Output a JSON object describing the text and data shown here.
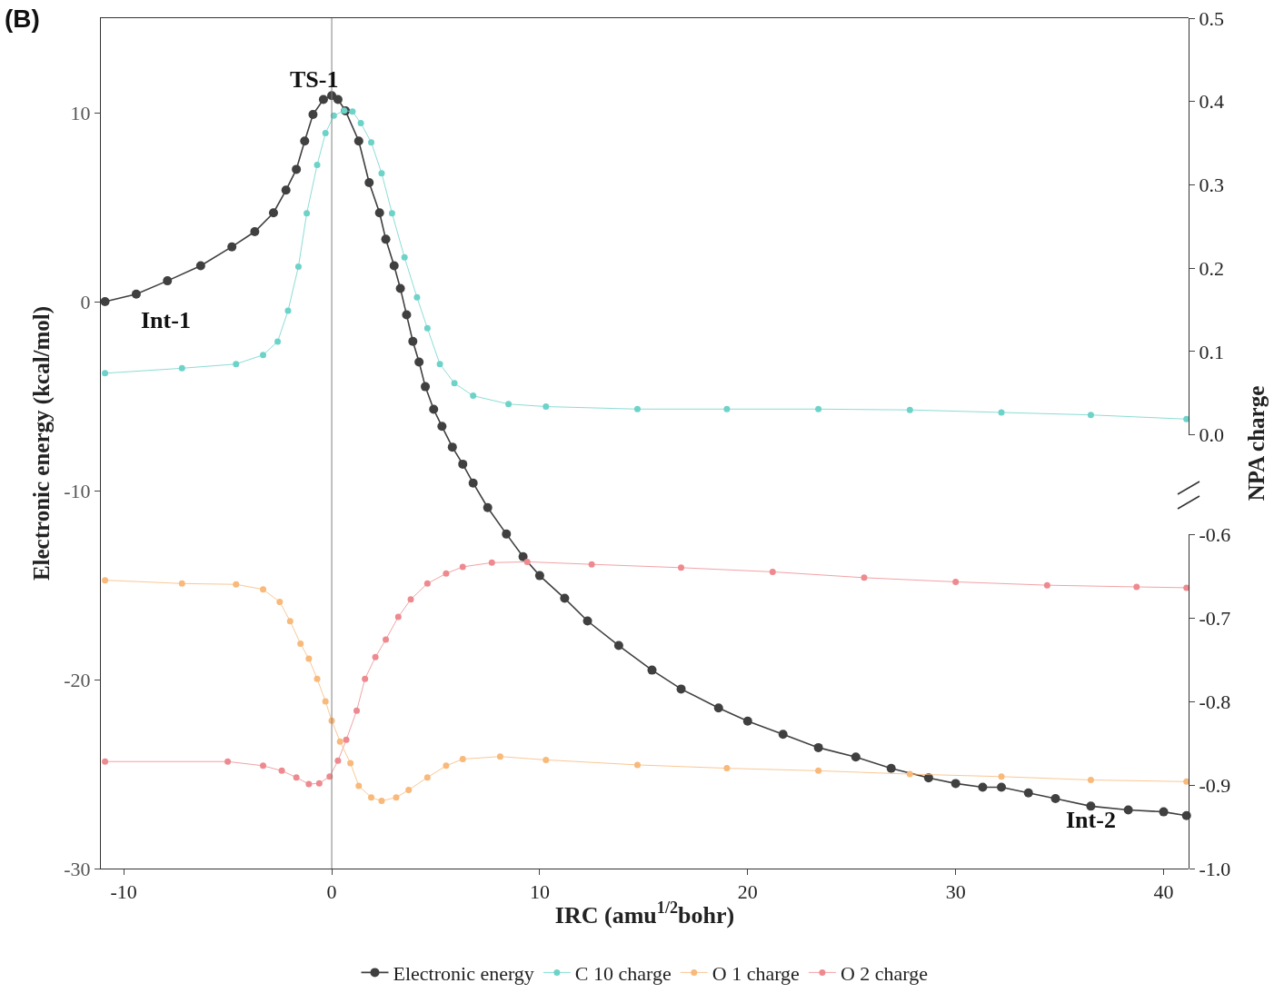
{
  "chart_data": {
    "type": "line",
    "xlabel": "IRC (amu$^{1/2}$bohr)",
    "ylabel": "Electronic energy (kcal/mol)",
    "y2label": "NPA charge",
    "annotations": [
      "(B)",
      "TS-1",
      "Int-1",
      "Int-2"
    ],
    "xlim": [
      -11.1,
      41.2
    ],
    "xticks": [
      -10,
      0,
      10,
      20,
      30,
      40
    ],
    "ylim": [
      -30,
      15
    ],
    "yticks": [
      -30,
      -20,
      -10,
      0,
      10
    ],
    "y2lim": [
      0,
      0.5
    ],
    "y2ticks": [
      {
        "value": 0,
        "label": "0.0"
      },
      0.1,
      0.2,
      0.3,
      0.4,
      0.5
    ],
    "y3lim": [
      -1.0,
      -0.6
    ],
    "y3ticks": [
      {
        "value": -1.0,
        "label": "-1.0"
      },
      -0.9,
      -0.8,
      -0.7,
      -0.6
    ],
    "ref_lines": [
      {
        "axis": "x",
        "value": 0,
        "color": "#808080"
      }
    ],
    "grid": false,
    "legend": "bottom",
    "marker": "circle",
    "line_style": "solid",
    "series": [
      {
        "name": "Electronic energy",
        "color": "#404040",
        "x": [
          -10.9,
          -9.4,
          -7.9,
          -6.3,
          -4.8,
          -3.7,
          -2.8,
          -2.2,
          -1.7,
          -1.3,
          -0.9,
          -0.4,
          0,
          0.3,
          0.66,
          1.3,
          1.8,
          2.3,
          2.6,
          3.0,
          3.3,
          3.6,
          3.9,
          4.2,
          4.5,
          4.9,
          5.3,
          5.8,
          6.3,
          6.8,
          7.5,
          8.4,
          9.2,
          10,
          11.2,
          12.3,
          13.8,
          15.4,
          16.8,
          18.6,
          20,
          21.7,
          23.4,
          25.2,
          26.9,
          28.7,
          30,
          31.3,
          32.2,
          33.5,
          34.8,
          36.5,
          38.3,
          40,
          41.1
        ],
        "values": [
          0.0,
          0.4,
          1.1,
          1.9,
          2.9,
          3.7,
          4.7,
          5.9,
          7.0,
          8.5,
          9.9,
          10.7,
          10.9,
          10.7,
          10.1,
          8.5,
          6.3,
          4.7,
          3.3,
          1.9,
          0.7,
          -0.7,
          -2.1,
          -3.2,
          -4.5,
          -5.7,
          -6.6,
          -7.7,
          -8.6,
          -9.6,
          -10.9,
          -12.3,
          -13.5,
          -14.5,
          -15.7,
          -16.9,
          -18.2,
          -19.5,
          -20.5,
          -21.5,
          -22.2,
          -22.9,
          -23.6,
          -24.1,
          -24.7,
          -25.2,
          -25.5,
          -25.7,
          -25.7,
          -26.0,
          -26.3,
          -26.7,
          -26.9,
          -27.0,
          -27.2
        ]
      },
      {
        "name": "C 10 charge",
        "color": "#6dd3c9",
        "axis": "y2",
        "x": [
          -10.9,
          -7.2,
          -4.6,
          -3.3,
          -2.6,
          -2.1,
          -1.6,
          -1.2,
          -0.7,
          -0.3,
          0.1,
          0.6,
          1.0,
          1.4,
          1.9,
          2.4,
          2.9,
          3.5,
          4.1,
          4.6,
          5.2,
          5.9,
          6.8,
          8.5,
          10.3,
          14.7,
          19,
          23.4,
          27.8,
          32.2,
          36.5,
          41.1
        ],
        "values": [
          0.074,
          0.08,
          0.085,
          0.096,
          0.112,
          0.149,
          0.202,
          0.266,
          0.324,
          0.362,
          0.383,
          0.389,
          0.388,
          0.374,
          0.351,
          0.314,
          0.266,
          0.213,
          0.165,
          0.128,
          0.085,
          0.062,
          0.047,
          0.037,
          0.034,
          0.031,
          0.031,
          0.031,
          0.03,
          0.027,
          0.024,
          0.019
        ]
      },
      {
        "name": "O 1 charge",
        "color": "#f8b97a",
        "axis": "y3",
        "x": [
          -10.9,
          -7.2,
          -4.6,
          -3.3,
          -2.5,
          -2.0,
          -1.5,
          -1.1,
          -0.7,
          -0.3,
          0,
          0.4,
          0.9,
          1.3,
          1.9,
          2.4,
          3.1,
          3.7,
          4.6,
          5.5,
          6.3,
          8.1,
          10.3,
          14.7,
          19,
          23.4,
          27.8,
          32.2,
          36.5,
          41.1
        ],
        "values": [
          -0.655,
          -0.659,
          -0.66,
          -0.666,
          -0.681,
          -0.704,
          -0.731,
          -0.749,
          -0.773,
          -0.8,
          -0.823,
          -0.848,
          -0.874,
          -0.901,
          -0.915,
          -0.919,
          -0.915,
          -0.906,
          -0.891,
          -0.877,
          -0.869,
          -0.866,
          -0.87,
          -0.876,
          -0.88,
          -0.883,
          -0.887,
          -0.89,
          -0.894,
          -0.896
        ]
      },
      {
        "name": "O 2 charge",
        "color": "#ee8a8f",
        "axis": "y3",
        "x": [
          -10.9,
          -5,
          -3.3,
          -2.4,
          -1.7,
          -1.1,
          -0.6,
          -0.1,
          0.3,
          0.7,
          1.2,
          1.6,
          2.1,
          2.6,
          3.2,
          3.8,
          4.6,
          5.5,
          6.3,
          7.7,
          9.4,
          12.5,
          16.8,
          21.2,
          25.6,
          30,
          34.4,
          38.7,
          41.1
        ],
        "values": [
          -0.872,
          -0.872,
          -0.877,
          -0.883,
          -0.891,
          -0.899,
          -0.898,
          -0.89,
          -0.871,
          -0.846,
          -0.811,
          -0.773,
          -0.747,
          -0.726,
          -0.699,
          -0.678,
          -0.659,
          -0.647,
          -0.639,
          -0.634,
          -0.633,
          -0.636,
          -0.64,
          -0.645,
          -0.652,
          -0.657,
          -0.661,
          -0.663,
          -0.664
        ]
      }
    ]
  }
}
